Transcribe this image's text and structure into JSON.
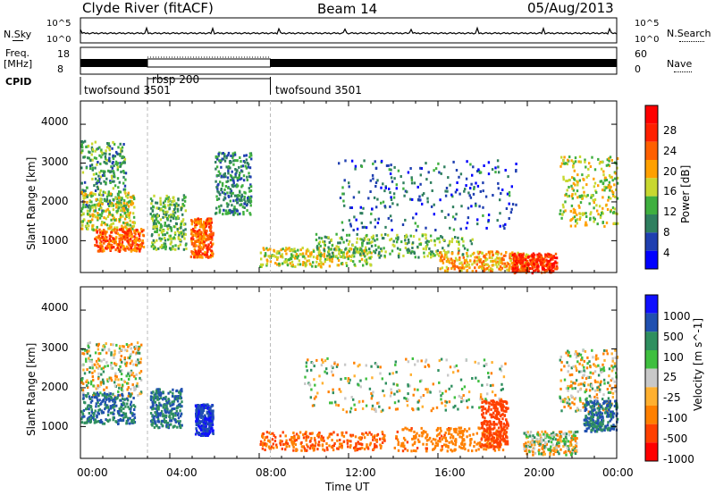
{
  "header": {
    "station": "Clyde River (fitACF)",
    "beam": "Beam 14",
    "date": "05/Aug/2013"
  },
  "top_panels": {
    "nsky_label": "N.Sky",
    "nsky_ticks": [
      "10^5",
      "10^0"
    ],
    "nsearch_label": "N.Search",
    "nsearch_ticks": [
      "10^5",
      "10^0"
    ],
    "freq_label": "Freq.",
    "freq_unit": "[MHz]",
    "freq_ticks": [
      "18",
      "8"
    ],
    "nave_label": "Nave",
    "nave_ticks": [
      "60",
      "0"
    ],
    "cpid_label": "CPID",
    "cpid_segments": [
      {
        "name": "twofsound 3501",
        "start": "00:00",
        "end": "03:00"
      },
      {
        "name": "rbsp 200",
        "start": "03:00",
        "end": "08:30"
      },
      {
        "name": "twofsound 3501",
        "start": "08:30",
        "end": "24:00"
      }
    ]
  },
  "colors": {
    "power_scale": [
      "#0000ff",
      "#1f3fb0",
      "#2f7f5f",
      "#3faf3f",
      "#c8d830",
      "#ffa000",
      "#ff6000",
      "#ff2000",
      "#ff0000"
    ],
    "velocity_scale": [
      "#1010ff",
      "#2050b0",
      "#2f8f5f",
      "#3fbf3f",
      "#c8c8c8",
      "#ffb030",
      "#ff8000",
      "#ff4000",
      "#ff0000"
    ]
  },
  "chart_data": [
    {
      "type": "heatmap",
      "title": "Power",
      "ylabel": "Slant Range [km]",
      "xlabel": "",
      "x_ticks": [
        "00:00",
        "04:00",
        "08:00",
        "12:00",
        "16:00",
        "20:00",
        "00:00"
      ],
      "xlim": [
        0,
        24
      ],
      "y_ticks": [
        1000,
        2000,
        3000,
        4000
      ],
      "ylim": [
        180,
        4600
      ],
      "colorbar": {
        "label": "Power [dB]",
        "ticks": [
          4,
          8,
          12,
          16,
          20,
          24,
          28
        ],
        "range": [
          0,
          32
        ]
      },
      "blobs": [
        {
          "t": 1.0,
          "r": 2700,
          "dt": 1.0,
          "dr": 900,
          "level": 10
        },
        {
          "t": 1.2,
          "r": 1800,
          "dt": 1.2,
          "dr": 500,
          "level": 16
        },
        {
          "t": 1.7,
          "r": 1050,
          "dt": 1.1,
          "dr": 300,
          "level": 24
        },
        {
          "t": 3.9,
          "r": 1500,
          "dt": 0.8,
          "dr": 700,
          "level": 12
        },
        {
          "t": 5.4,
          "r": 1100,
          "dt": 0.5,
          "dr": 500,
          "level": 24
        },
        {
          "t": 6.8,
          "r": 2500,
          "dt": 0.8,
          "dr": 800,
          "level": 8
        },
        {
          "t": 10.5,
          "r": 600,
          "dt": 2.5,
          "dr": 250,
          "level": 16
        },
        {
          "t": 14.0,
          "r": 900,
          "dt": 3.5,
          "dr": 300,
          "level": 12
        },
        {
          "t": 15.5,
          "r": 2200,
          "dt": 4.0,
          "dr": 900,
          "level": 6
        },
        {
          "t": 18.0,
          "r": 500,
          "dt": 2.0,
          "dr": 250,
          "level": 20
        },
        {
          "t": 20.3,
          "r": 450,
          "dt": 1.0,
          "dr": 250,
          "level": 28
        },
        {
          "t": 22.8,
          "r": 2300,
          "dt": 1.4,
          "dr": 900,
          "level": 16
        }
      ]
    },
    {
      "type": "heatmap",
      "title": "Velocity",
      "ylabel": "Slant Range [km]",
      "xlabel": "Time UT",
      "x_ticks": [
        "00:00",
        "04:00",
        "08:00",
        "12:00",
        "16:00",
        "20:00",
        "00:00"
      ],
      "xlim": [
        0,
        24
      ],
      "y_ticks": [
        1000,
        2000,
        3000,
        4000
      ],
      "ylim": [
        180,
        4600
      ],
      "colorbar": {
        "label": "Velocity [m s^-1]",
        "ticks": [
          1000,
          500,
          100,
          25,
          -25,
          -100,
          -500,
          -1000
        ]
      },
      "blobs": [
        {
          "t": 1.3,
          "r": 2500,
          "dt": 1.4,
          "dr": 700,
          "v": 0
        },
        {
          "t": 1.2,
          "r": 1500,
          "dt": 1.2,
          "dr": 400,
          "v": 300
        },
        {
          "t": 3.8,
          "r": 1500,
          "dt": 0.7,
          "dr": 500,
          "v": 300
        },
        {
          "t": 5.5,
          "r": 1200,
          "dt": 0.4,
          "dr": 400,
          "v": 800
        },
        {
          "t": 10.8,
          "r": 650,
          "dt": 2.8,
          "dr": 250,
          "v": -300
        },
        {
          "t": 14.5,
          "r": 2100,
          "dt": 4.5,
          "dr": 700,
          "v": 0
        },
        {
          "t": 16.5,
          "r": 700,
          "dt": 2.5,
          "dr": 300,
          "v": -200
        },
        {
          "t": 18.5,
          "r": 1100,
          "dt": 0.6,
          "dr": 600,
          "v": -500
        },
        {
          "t": 21.0,
          "r": 600,
          "dt": 1.2,
          "dr": 300,
          "v": 0
        },
        {
          "t": 22.8,
          "r": 2200,
          "dt": 1.4,
          "dr": 800,
          "v": 0
        },
        {
          "t": 23.3,
          "r": 1300,
          "dt": 0.8,
          "dr": 400,
          "v": 300
        }
      ]
    }
  ]
}
